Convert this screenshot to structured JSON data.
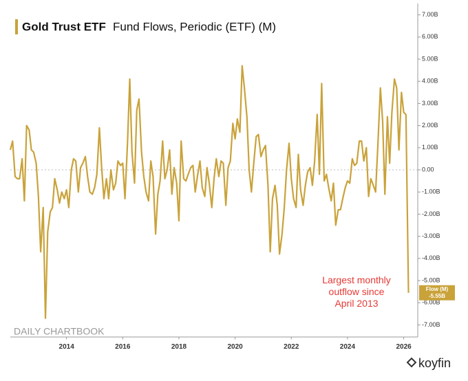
{
  "chart_data": {
    "type": "line",
    "title": "Gold Trust ETF",
    "subtitle": "Fund Flows, Periodic (ETF) (M)",
    "annotation": "Largest monthly outflow since April 2013",
    "watermark": "DAILY CHARTBOOK",
    "brand": "koyfin",
    "value_tag": {
      "name": "Flow (M)",
      "label": "-5.55B"
    },
    "xlim": [
      2012,
      2026.5
    ],
    "xticks": [
      2014,
      2016,
      2018,
      2020,
      2022,
      2024,
      2026
    ],
    "ylim": [
      -7.5,
      7.5
    ],
    "yticks": [
      {
        "value": 7,
        "label": "7.00B"
      },
      {
        "value": 6,
        "label": "6.00B"
      },
      {
        "value": 5,
        "label": "5.00B"
      },
      {
        "value": 4,
        "label": "4.00B"
      },
      {
        "value": 3,
        "label": "3.00B"
      },
      {
        "value": 2,
        "label": "2.00B"
      },
      {
        "value": 1,
        "label": "1.00B"
      },
      {
        "value": 0,
        "label": "0.00"
      },
      {
        "value": -1,
        "label": "-1.00B"
      },
      {
        "value": -2,
        "label": "-2.00B"
      },
      {
        "value": -3,
        "label": "-3.00B"
      },
      {
        "value": -4,
        "label": "-4.00B"
      },
      {
        "value": -5,
        "label": "-5.00B"
      },
      {
        "value": -6,
        "label": "-6.00B"
      },
      {
        "value": -7,
        "label": "-7.00B"
      }
    ],
    "x": [
      2012,
      2012.08,
      2012.17,
      2012.25,
      2012.33,
      2012.42,
      2012.5,
      2012.58,
      2012.67,
      2012.75,
      2012.83,
      2012.92,
      2013,
      2013.08,
      2013.17,
      2013.25,
      2013.33,
      2013.42,
      2013.5,
      2013.58,
      2013.67,
      2013.75,
      2013.83,
      2013.92,
      2014,
      2014.08,
      2014.17,
      2014.25,
      2014.33,
      2014.42,
      2014.5,
      2014.58,
      2014.67,
      2014.75,
      2014.83,
      2014.92,
      2015,
      2015.08,
      2015.17,
      2015.25,
      2015.33,
      2015.42,
      2015.5,
      2015.58,
      2015.67,
      2015.75,
      2015.83,
      2015.92,
      2016,
      2016.08,
      2016.17,
      2016.25,
      2016.33,
      2016.42,
      2016.5,
      2016.58,
      2016.67,
      2016.75,
      2016.83,
      2016.92,
      2017,
      2017.08,
      2017.17,
      2017.25,
      2017.33,
      2017.42,
      2017.5,
      2017.58,
      2017.67,
      2017.75,
      2017.83,
      2017.92,
      2018,
      2018.08,
      2018.17,
      2018.25,
      2018.33,
      2018.42,
      2018.5,
      2018.58,
      2018.67,
      2018.75,
      2018.83,
      2018.92,
      2019,
      2019.08,
      2019.17,
      2019.25,
      2019.33,
      2019.42,
      2019.5,
      2019.58,
      2019.67,
      2019.75,
      2019.83,
      2019.92,
      2020,
      2020.08,
      2020.17,
      2020.25,
      2020.33,
      2020.42,
      2020.5,
      2020.58,
      2020.67,
      2020.75,
      2020.83,
      2020.92,
      2021,
      2021.08,
      2021.17,
      2021.25,
      2021.33,
      2021.42,
      2021.5,
      2021.58,
      2021.67,
      2021.75,
      2021.83,
      2021.92,
      2022,
      2022.08,
      2022.17,
      2022.25,
      2022.33,
      2022.42,
      2022.5,
      2022.58,
      2022.67,
      2022.75,
      2022.83,
      2022.92,
      2023,
      2023.08,
      2023.17,
      2023.25,
      2023.33,
      2023.42,
      2023.5,
      2023.58,
      2023.67,
      2023.75,
      2023.83,
      2023.92,
      2024,
      2024.08,
      2024.17,
      2024.25,
      2024.33,
      2024.42,
      2024.5,
      2024.58,
      2024.67,
      2024.75,
      2024.83,
      2024.92,
      2025,
      2025.08,
      2025.17,
      2025.25,
      2025.33,
      2025.42,
      2025.5,
      2025.58,
      2025.67,
      2025.75,
      2025.83,
      2025.92,
      2026,
      2026.08,
      2026.17
    ],
    "series": [
      {
        "name": "Flow (M)",
        "color": "#c9a23a",
        "values": [
          0.9,
          1.3,
          -0.3,
          -0.4,
          -0.4,
          0.5,
          -1.4,
          2.0,
          1.8,
          0.9,
          0.8,
          0.3,
          -1.2,
          -3.7,
          -1.7,
          -6.7,
          -2.8,
          -1.9,
          -1.7,
          -0.4,
          -0.9,
          -1.5,
          -1.0,
          -1.3,
          -0.9,
          -1.7,
          0.0,
          0.5,
          0.4,
          -1.0,
          0.1,
          0.3,
          0.6,
          -0.3,
          -1.0,
          -1.1,
          -0.8,
          -0.2,
          1.9,
          0.1,
          -1.3,
          -0.4,
          -1.3,
          0.0,
          -0.9,
          -0.6,
          0.4,
          0.2,
          0.3,
          -1.3,
          1.2,
          4.1,
          0.8,
          -0.6,
          2.7,
          3.2,
          0.8,
          -0.3,
          -1.0,
          -1.4,
          0.4,
          -0.3,
          -2.9,
          -1.1,
          -0.5,
          1.3,
          -0.4,
          0.0,
          0.9,
          -1.1,
          0.1,
          -0.6,
          -2.3,
          1.3,
          -0.4,
          -0.5,
          -0.2,
          0.1,
          0.2,
          -1.0,
          -0.2,
          0.4,
          -0.8,
          -1.2,
          0.1,
          -0.6,
          -1.7,
          -0.4,
          0.5,
          -0.3,
          0.4,
          0.3,
          -1.6,
          0.1,
          0.4,
          2.1,
          1.4,
          2.3,
          1.7,
          4.7,
          3.7,
          2.4,
          0.0,
          -1.0,
          0.4,
          1.5,
          1.6,
          0.6,
          0.9,
          1.1,
          -0.7,
          -3.7,
          -1.3,
          -0.7,
          -1.6,
          -3.8,
          -2.9,
          -1.7,
          0.0,
          1.2,
          -0.4,
          -1.3,
          -1.7,
          0.7,
          -0.9,
          -1.6,
          -0.7,
          -0.1,
          0.1,
          -0.7,
          0.4,
          2.5,
          -0.2,
          3.9,
          -0.5,
          -0.2,
          -0.8,
          -1.4,
          -0.6,
          -2.5,
          -1.8,
          -1.8,
          -1.3,
          -0.8,
          -0.5,
          -0.6,
          0.5,
          0.2,
          0.3,
          1.3,
          1.3,
          0.4,
          1.0,
          -1.2,
          -0.4,
          -0.7,
          -1.0,
          1.1,
          3.7,
          2.2,
          -1.1,
          2.4,
          0.3,
          2.6,
          4.1,
          3.7,
          0.9,
          3.5,
          2.6,
          2.5,
          -5.55
        ]
      }
    ]
  }
}
